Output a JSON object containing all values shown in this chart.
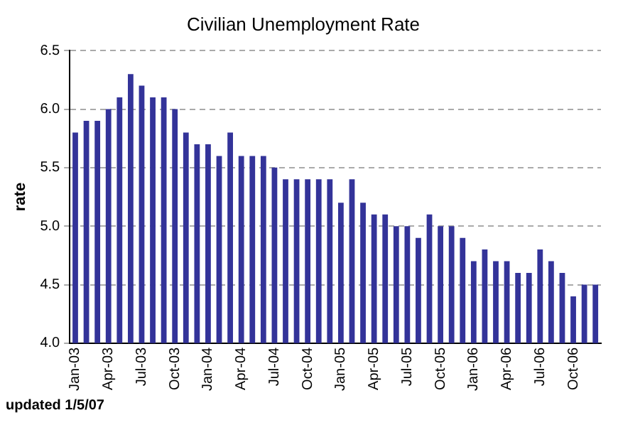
{
  "chart_data": {
    "type": "bar",
    "title": "Civilian Unemployment Rate",
    "ylabel": "rate",
    "categories": [
      "Jan-03",
      null,
      null,
      "Apr-03",
      null,
      null,
      "Jul-03",
      null,
      null,
      "Oct-03",
      null,
      null,
      "Jan-04",
      null,
      null,
      "Apr-04",
      null,
      null,
      "Jul-04",
      null,
      null,
      "Oct-04",
      null,
      null,
      "Jan-05",
      null,
      null,
      "Apr-05",
      null,
      null,
      "Jul-05",
      null,
      null,
      "Oct-05",
      null,
      null,
      "Jan-06",
      null,
      null,
      "Apr-06",
      null,
      null,
      "Jul-06",
      null,
      null,
      "Oct-06",
      null,
      null
    ],
    "values": [
      5.8,
      5.9,
      5.9,
      6.0,
      6.1,
      6.3,
      6.2,
      6.1,
      6.1,
      6.0,
      5.8,
      5.7,
      5.7,
      5.6,
      5.8,
      5.6,
      5.6,
      5.6,
      5.5,
      5.4,
      5.4,
      5.4,
      5.4,
      5.4,
      5.2,
      5.4,
      5.2,
      5.1,
      5.1,
      5.0,
      5.0,
      4.9,
      5.1,
      5.0,
      5.0,
      4.9,
      4.7,
      4.8,
      4.7,
      4.7,
      4.6,
      4.6,
      4.8,
      4.7,
      4.6,
      4.4,
      4.5,
      4.5
    ],
    "color": "#333399",
    "ylim": [
      4,
      6.5
    ],
    "yticks": [
      {
        "value": 4,
        "label": "4.0"
      },
      {
        "value": 4.5,
        "label": "4.5"
      },
      {
        "value": 5,
        "label": "5.0"
      },
      {
        "value": 5.5,
        "label": "5.5"
      },
      {
        "value": 6,
        "label": "6.0"
      },
      {
        "value": 6.5,
        "label": "6.5"
      }
    ],
    "grid": "y",
    "line_style": "dashed",
    "legend": false,
    "annotations": [
      "updated 1/5/07"
    ]
  }
}
